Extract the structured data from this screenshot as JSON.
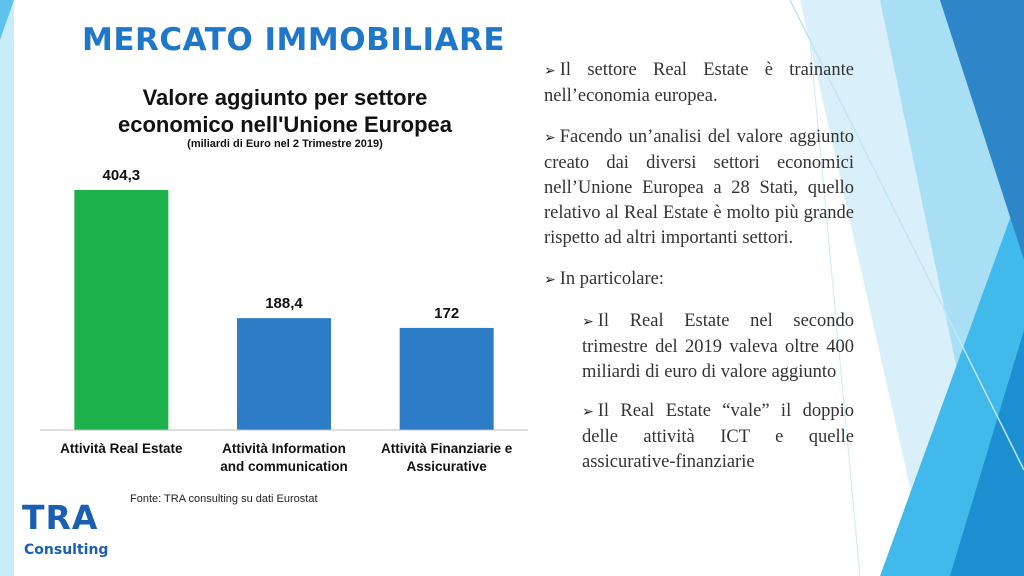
{
  "page": {
    "title": "MERCATO IMMOBILIARE",
    "source": "Fonte: TRA consulting su dati Eurostat"
  },
  "logo": {
    "main": "TRA",
    "sub": "Consulting"
  },
  "bullets": [
    {
      "text": "Il settore Real Estate è trainante nell’economia europea.",
      "level": 0,
      "icon": "arrow-bullet-icon"
    },
    {
      "text": "Facendo un’analisi del valore aggiunto creato dai diversi settori economici nell’Unione Europea a 28 Stati, quello relativo al Real Estate è molto più grande rispetto ad altri importanti settori.",
      "level": 0,
      "icon": "arrow-bullet-icon"
    },
    {
      "text": "In particolare:",
      "level": 0,
      "icon": "arrow-bullet-icon"
    },
    {
      "text": "Il Real Estate nel secondo trimestre del 2019 valeva oltre 400 miliardi di euro di valore aggiunto",
      "level": 1,
      "icon": "arrow-bullet-icon"
    },
    {
      "text": "Il Real Estate “vale” il doppio delle attività ICT e quelle assicurative-finanziarie",
      "level": 1,
      "icon": "arrow-bullet-icon"
    }
  ],
  "colors": {
    "title": "#1f77c9",
    "bar_green": "#1db14b",
    "bar_blue": "#2d7cc6",
    "logo": "#1a5fb4"
  },
  "chart_data": {
    "type": "bar",
    "title": "Valore aggiunto per settore economico nell'Unione Europea",
    "subtitle": "(miliardi di Euro nel 2 Trimestre 2019)",
    "categories": [
      [
        "Attività Real Estate"
      ],
      [
        "Attività Information",
        "and communication"
      ],
      [
        "Attività Finanziarie e",
        "Assicurative"
      ]
    ],
    "values": [
      404.3,
      188.4,
      172
    ],
    "value_labels": [
      "404,3",
      "188,4",
      "172"
    ],
    "bar_colors": [
      "#1db14b",
      "#2d7cc6",
      "#2d7cc6"
    ],
    "ylim": [
      0,
      404.3
    ],
    "grid": false,
    "legend": "none"
  }
}
